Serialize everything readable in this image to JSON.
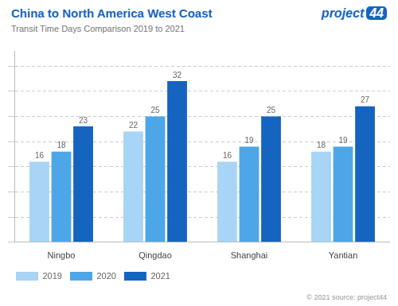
{
  "chart_data": {
    "type": "bar",
    "title": "China to North America West Coast",
    "subtitle": "Transit Time Days Comparison 2019 to 2021",
    "categories": [
      "Ningbo",
      "Qingdao",
      "Shanghai",
      "Yantian"
    ],
    "series": [
      {
        "name": "2019",
        "color": "#a8d4f5",
        "values": [
          16,
          22,
          16,
          18
        ]
      },
      {
        "name": "2020",
        "color": "#4da6e8",
        "values": [
          18,
          25,
          19,
          19
        ]
      },
      {
        "name": "2021",
        "color": "#1464c0",
        "values": [
          23,
          32,
          25,
          27
        ]
      }
    ],
    "ylim": [
      0,
      38
    ],
    "yticks": [
      0,
      5,
      10,
      15,
      20,
      25,
      30,
      35
    ],
    "grid": true,
    "data_labels": true,
    "tick_labels": "x",
    "legend": "lower left",
    "annotations": [
      "project",
      "44",
      "© 2021 source: project44"
    ]
  }
}
